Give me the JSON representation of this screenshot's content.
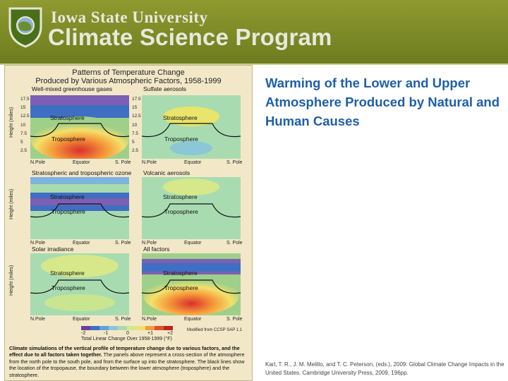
{
  "header": {
    "university": "Iowa State University",
    "program": "Climate Science Program",
    "colors": {
      "banner": "#7c8a26",
      "text": "#e8e8dc"
    }
  },
  "figure": {
    "title_line1": "Patterns of Temperature Change",
    "title_line2": "Produced by Various Atmospheric Factors, 1958-1999",
    "panels": [
      {
        "title": "Well-mixed greenhouse gases"
      },
      {
        "title": "Sulfate aerosols"
      },
      {
        "title": "Stratospheric and tropospheric ozone"
      },
      {
        "title": "Volcanic aerosols"
      },
      {
        "title": "Solar irradiance"
      },
      {
        "title": "All factors"
      }
    ],
    "ylabel": "Height (miles)",
    "yticks": [
      "17.5",
      "15",
      "12.5",
      "10",
      "7.5",
      "5",
      "2.5"
    ],
    "xticks": [
      "N.Pole",
      "Equator",
      "S. Pole"
    ],
    "strat_label": "Stratosphere",
    "trop_label": "Troposphere",
    "colorbar_label": "Total Linear Change Over 1958-1999 (°F)",
    "colorbar_ticks": [
      "-2",
      "-1",
      "0",
      "+1",
      "+2"
    ],
    "source_note": "Modified from CCSP SAP 1.1",
    "caption_bold": "Climate simulations of the vertical profile of temperature change due to various factors, and the effect due to all factors taken together.",
    "caption_rest": " The panels above represent a cross-section of the atmosphere from the north pole to the south pole, and from the surface up into the stratosphere. The black lines show the location of the tropopause, the boundary between the lower atmosphere (troposphere) and the stratosphere."
  },
  "slide": {
    "title": "Warming of the Lower and Upper Atmosphere Produced by Natural and Human Causes",
    "reference": "Karl, T. R., J. M. Melillo, and T. C. Peterson, (eds.), 2009: Global Climate Change Impacts in the United States. Cambridge University Press, 2009, 196pp."
  }
}
